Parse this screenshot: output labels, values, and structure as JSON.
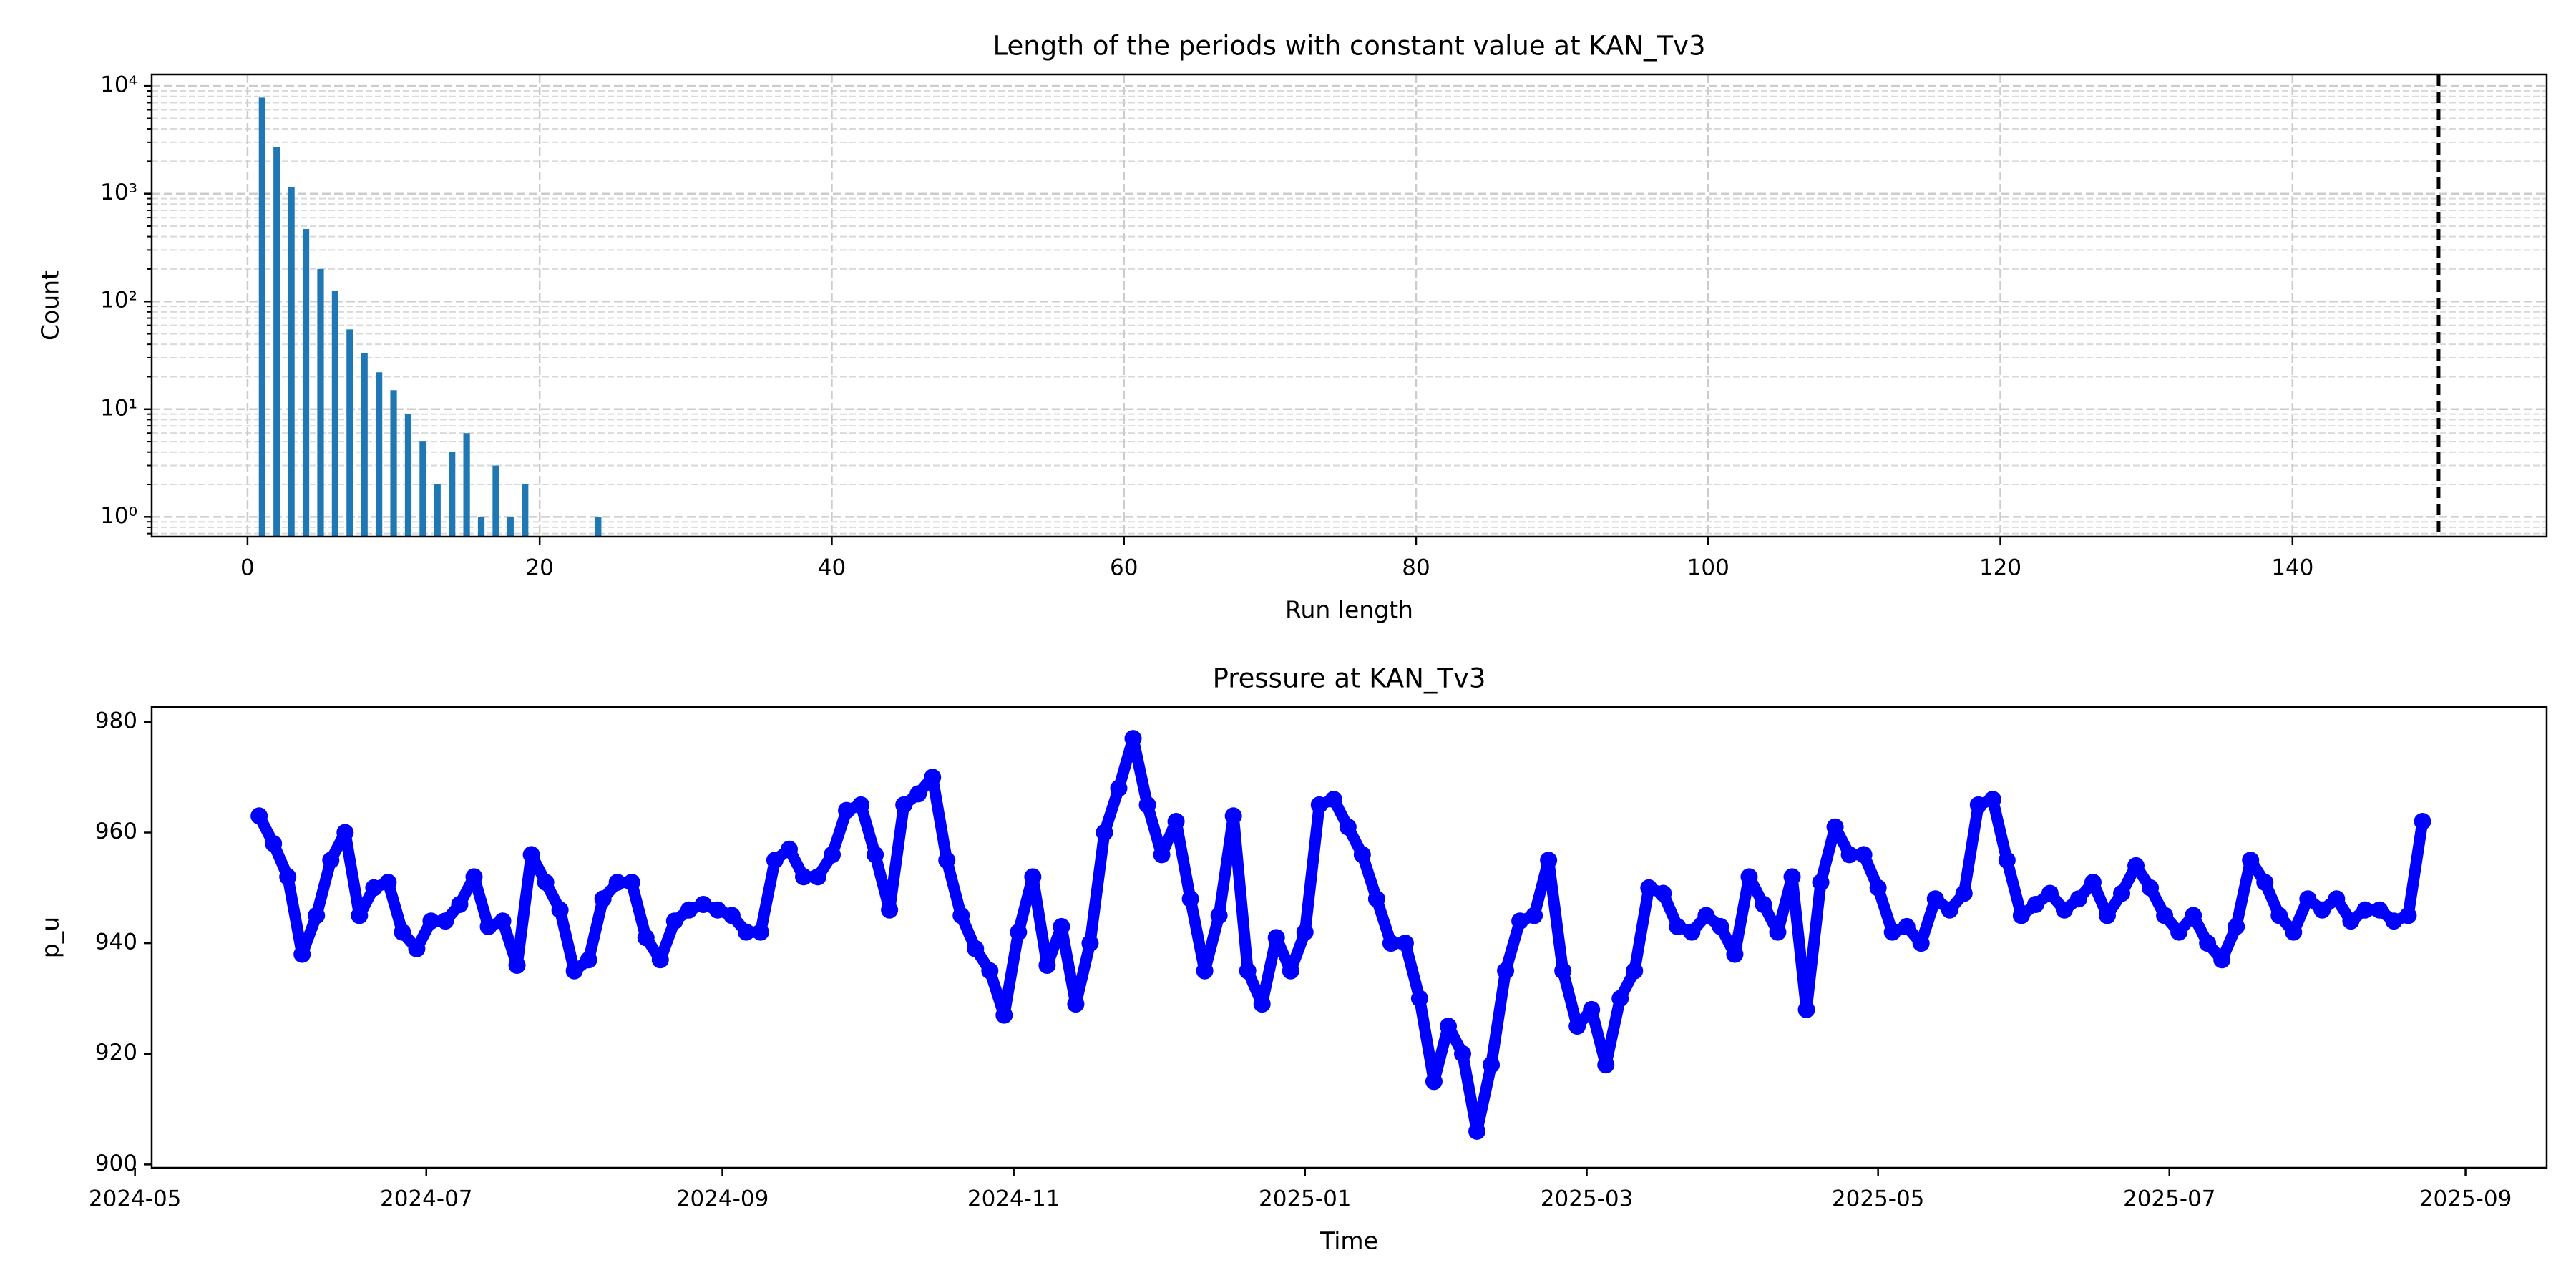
{
  "chart_data": [
    {
      "type": "bar",
      "title": "Length of the periods with constant value at KAN_Tv3",
      "xlabel": "Run length",
      "ylabel": "Count",
      "x": [
        1,
        2,
        3,
        4,
        5,
        6,
        7,
        8,
        9,
        10,
        11,
        12,
        13,
        14,
        15,
        16,
        17,
        18,
        19,
        24
      ],
      "values": [
        7800,
        2700,
        1150,
        470,
        200,
        125,
        55,
        33,
        22,
        15,
        9,
        5,
        2,
        4,
        6,
        1,
        3,
        1,
        2,
        1
      ],
      "color": "#1f77b4",
      "xlim": [
        -6.56,
        157.4
      ],
      "xticks": [
        0,
        20,
        40,
        60,
        80,
        100,
        120,
        140
      ],
      "yscale": "log",
      "ylim": [
        0.655,
        12800
      ],
      "yticks": [
        {
          "value": 1,
          "label": "10⁰"
        },
        {
          "value": 10,
          "label": "10¹"
        },
        {
          "value": 100,
          "label": "10²"
        },
        {
          "value": 1000,
          "label": "10³"
        },
        {
          "value": 10000,
          "label": "10⁴"
        }
      ],
      "grid": true,
      "vline": {
        "x": 150,
        "color": "#000000"
      }
    },
    {
      "type": "line",
      "title": "Pressure at KAN_Tv3",
      "xlabel": "Time",
      "ylabel": "p_u",
      "x": [
        19870,
        19873,
        19876,
        19879,
        19882,
        19885,
        19888,
        19891,
        19894,
        19897,
        19900,
        19903,
        19906,
        19909,
        19912,
        19915,
        19918,
        19921,
        19924,
        19927,
        19930,
        19933,
        19936,
        19939,
        19942,
        19945,
        19948,
        19951,
        19954,
        19957,
        19960,
        19963,
        19966,
        19969,
        19972,
        19975,
        19978,
        19981,
        19984,
        19987,
        19990,
        19993,
        19996,
        19999,
        20002,
        20005,
        20008,
        20011,
        20014,
        20017,
        20020,
        20023,
        20026,
        20029,
        20032,
        20035,
        20038,
        20041,
        20044,
        20047,
        20050,
        20053,
        20056,
        20059,
        20062,
        20065,
        20068,
        20071,
        20074,
        20077,
        20080,
        20083,
        20086,
        20089,
        20092,
        20095,
        20098,
        20101,
        20104,
        20107,
        20110,
        20113,
        20116,
        20119,
        20122,
        20125,
        20128,
        20131,
        20134,
        20137,
        20140,
        20143,
        20146,
        20149,
        20152,
        20155,
        20158,
        20161,
        20164,
        20167,
        20170,
        20173,
        20176,
        20179,
        20182,
        20185,
        20188,
        20191,
        20194,
        20197,
        20200,
        20203,
        20206,
        20209,
        20212,
        20215,
        20218,
        20221,
        20224,
        20227,
        20230,
        20233,
        20236,
        20239,
        20242,
        20245,
        20248,
        20251,
        20254,
        20257,
        20260,
        20263,
        20266,
        20269,
        20272,
        20275,
        20278,
        20281,
        20284,
        20287,
        20290,
        20293,
        20296,
        20299,
        20302,
        20305,
        20308,
        20311,
        20314,
        20317,
        20320,
        20323
      ],
      "series": [
        {
          "name": "p_u",
          "color": "#0000ff",
          "values": [
            963,
            958,
            952,
            938,
            945,
            955,
            960,
            945,
            950,
            951,
            942,
            939,
            944,
            944,
            947,
            952,
            943,
            944,
            936,
            956,
            951,
            946,
            935,
            937,
            948,
            951,
            951,
            941,
            937,
            944,
            946,
            947,
            946,
            945,
            942,
            942,
            955,
            957,
            952,
            952,
            956,
            964,
            965,
            956,
            946,
            965,
            967,
            970,
            955,
            945,
            939,
            935,
            927,
            942,
            952,
            936,
            943,
            929,
            940,
            960,
            968,
            977,
            965,
            956,
            962,
            948,
            935,
            945,
            963,
            935,
            929,
            941,
            935,
            942,
            965,
            966,
            961,
            956,
            948,
            940,
            940,
            930,
            915,
            925,
            920,
            906,
            918,
            935,
            944,
            945,
            955,
            935,
            925,
            928,
            918,
            930,
            935,
            950,
            949,
            943,
            942,
            945,
            943,
            938,
            952,
            947,
            942,
            952,
            928,
            951,
            961,
            956,
            956,
            950,
            942,
            943,
            940,
            948,
            946,
            949,
            965,
            966,
            955,
            945,
            947,
            949,
            946,
            948,
            951,
            945,
            949,
            954,
            950,
            945,
            942,
            945,
            940,
            937,
            943,
            955,
            951,
            945,
            942,
            948,
            946,
            948,
            944,
            946,
            946,
            944,
            945,
            962
          ]
        }
      ],
      "xlim": [
        19847.5,
        20349
      ],
      "xticks": [
        {
          "value": 19844,
          "label": "2024-05"
        },
        {
          "value": 19905,
          "label": "2024-07"
        },
        {
          "value": 19967,
          "label": "2024-09"
        },
        {
          "value": 20028,
          "label": "2024-11"
        },
        {
          "value": 20089,
          "label": "2025-01"
        },
        {
          "value": 20148,
          "label": "2025-03"
        },
        {
          "value": 20209,
          "label": "2025-05"
        },
        {
          "value": 20270,
          "label": "2025-07"
        },
        {
          "value": 20332,
          "label": "2025-09"
        }
      ],
      "ylim": [
        899.4,
        982.7
      ],
      "yticks": [
        900,
        920,
        940,
        960,
        980
      ],
      "grid": false
    }
  ]
}
